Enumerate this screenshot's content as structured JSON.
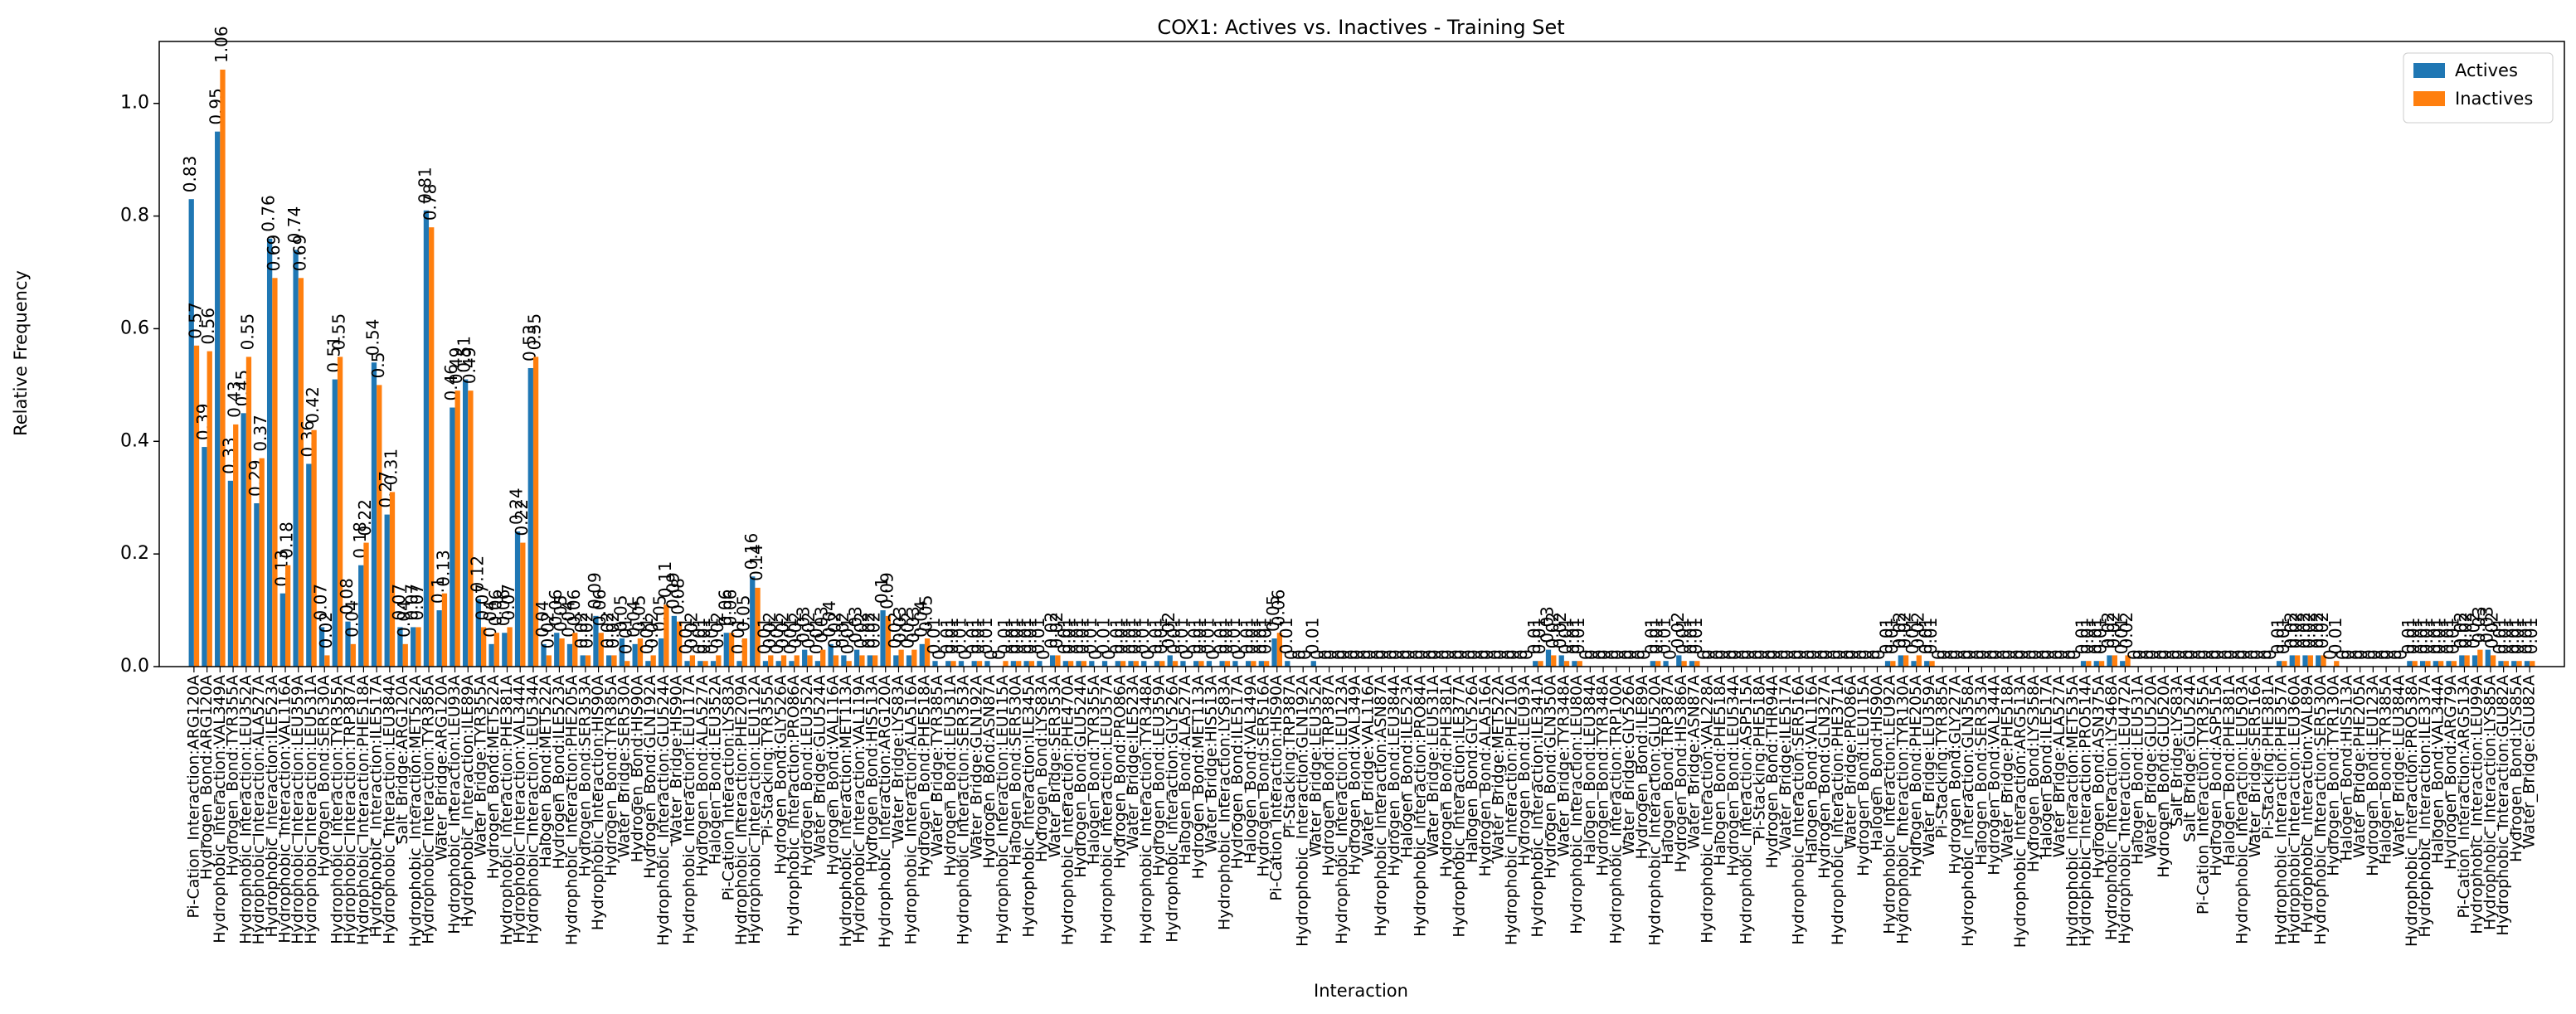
{
  "chart_data": {
    "type": "bar",
    "title": "COX1: Actives vs. Inactives - Training Set",
    "xlabel": "Interaction",
    "ylabel": "Relative Frequency",
    "legend": "upper right",
    "categories": [
      "Pi-Cation_Interaction:ARG120A",
      "Hydrogen_Bond:ARG120A",
      "Hydrophobic_Interaction:VAL349A",
      "Hydrogen_Bond:TYR355A",
      "Hydrophobic_Interaction:LEU352A",
      "Hydrophobic_Interaction:ALA527A",
      "Hydrophobic_Interaction:ILE523A",
      "Hydrophobic_Interaction:VAL116A",
      "Hydrophobic_Interaction:LEU359A",
      "Hydrophobic_Interaction:LEU531A",
      "Hydrogen_Bond:SER530A",
      "Hydrophobic_Interaction:TYR355A",
      "Hydrophobic_Interaction:TRP387A",
      "Hydrophobic_Interaction:PHE518A",
      "Hydrophobic_Interaction:ILE517A",
      "Hydrophobic_Interaction:LEU384A",
      "Salt_Bridge:ARG120A",
      "Hydrophobic_Interaction:MET522A",
      "Hydrophobic_Interaction:TYR385A",
      "Water_Bridge:ARG120A",
      "Hydrophobic_Interaction:LEU93A",
      "Hydrophobic_Interaction:ILE89A",
      "Water_Bridge:TYR355A",
      "Hydrogen_Bond:MET522A",
      "Hydrophobic_Interaction:PHE381A",
      "Hydrophobic_Interaction:VAL344A",
      "Hydrophobic_Interaction:LEU534A",
      "Halogen_Bond:MET522A",
      "Hydrogen_Bond:ILE523A",
      "Hydrophobic_Interaction:PHE205A",
      "Hydrogen_Bond:SER353A",
      "Hydrophobic_Interaction:HIS90A",
      "Hydrogen_Bond:TYR385A",
      "Water_Bridge:SER530A",
      "Hydrogen_Bond:HIS90A",
      "Hydrogen_Bond:GLN192A",
      "Hydrophobic_Interaction:GLU524A",
      "Water_Bridge:HIS90A",
      "Hydrophobic_Interaction:LEU117A",
      "Hydrogen_Bond:ALA527A",
      "Halogen_Bond:LEU352A",
      "Pi-Cation_Interaction:LYS83A",
      "Hydrophobic_Interaction:PHE209A",
      "Hydrophobic_Interaction:LEU112A",
      "Pi-Stacking:TYR355A",
      "Hydrogen_Bond:GLY526A",
      "Hydrophobic_Interaction:PRO86A",
      "Hydrogen_Bond:LEU352A",
      "Water_Bridge:GLU524A",
      "Hydrogen_Bond:VAL116A",
      "Hydrophobic_Interaction:MET113A",
      "Hydrophobic_Interaction:VAL119A",
      "Hydrogen_Bond:HIS513A",
      "Hydrophobic_Interaction:ARG120A",
      "Water_Bridge:LYS83A",
      "Hydrophobic_Interaction:ALA516A",
      "Hydrogen_Bond:PHE518A",
      "Water_Bridge:TYR385A",
      "Hydrogen_Bond:LEU531A",
      "Hydrophobic_Interaction:SER353A",
      "Water_Bridge:GLN192A",
      "Hydrogen_Bond:ASN87A",
      "Hydrophobic_Interaction:LEU115A",
      "Halogen_Bond:SER530A",
      "Hydrophobic_Interaction:ILE345A",
      "Hydrogen_Bond:LYS83A",
      "Water_Bridge:SER353A",
      "Hydrophobic_Interaction:PHE470A",
      "Hydrogen_Bond:GLU524A",
      "Halogen_Bond:TYR355A",
      "Hydrophobic_Interaction:LEU357A",
      "Hydrogen_Bond:PRO86A",
      "Water_Bridge:ILE523A",
      "Hydrophobic_Interaction:TYR348A",
      "Hydrogen_Bond:LEU359A",
      "Hydrophobic_Interaction:GLY526A",
      "Halogen_Bond:ALA527A",
      "Hydrogen_Bond:MET113A",
      "Water_Bridge:HIS513A",
      "Hydrophobic_Interaction:LYS83A",
      "Hydrogen_Bond:ILE517A",
      "Halogen_Bond:VAL349A",
      "Hydrogen_Bond:SER516A",
      "Pi-Cation_Interaction:HIS90A",
      "Pi-Stacking:TRP387A",
      "Hydrophobic_Interaction:GLN192A",
      "Water_Bridge:LEU352A",
      "Hydrogen_Bond:TRP387A",
      "Hydrophobic_Interaction:LEU123A",
      "Hydrogen_Bond:VAL349A",
      "Water_Bridge:VAL116A",
      "Hydrophobic_Interaction:ASN87A",
      "Hydrogen_Bond:LEU384A",
      "Halogen_Bond:ILE523A",
      "Hydrophobic_Interaction:PRO84A",
      "Water_Bridge:LEU531A",
      "Hydrogen_Bond:PHE381A",
      "Hydrophobic_Interaction:ILE377A",
      "Halogen_Bond:GLY526A",
      "Hydrogen_Bond:ALA516A",
      "Water_Bridge:MET522A",
      "Hydrophobic_Interaction:PHE210A",
      "Hydrogen_Bond:LEU93A",
      "Hydrophobic_Interaction:ILE341A",
      "Hydrogen_Bond:GLN350A",
      "Water_Bridge:TYR348A",
      "Hydrophobic_Interaction:LEU80A",
      "Halogen_Bond:LEU384A",
      "Hydrogen_Bond:TYR348A",
      "Hydrophobic_Interaction:TRP100A",
      "Water_Bridge:GLY526A",
      "Hydrogen_Bond:ILE89A",
      "Hydrophobic_Interaction:GLU520A",
      "Halogen_Bond:TRP387A",
      "Hydrogen_Bond:HIS386A",
      "Water_Bridge:ASN87A",
      "Hydrophobic_Interaction:VAL228A",
      "Halogen_Bond:PHE518A",
      "Hydrogen_Bond:LEU534A",
      "Hydrophobic_Interaction:ASP515A",
      "Pi-Stacking:PHE518A",
      "Hydrogen_Bond:THR94A",
      "Water_Bridge:ILE517A",
      "Hydrophobic_Interaction:SER516A",
      "Halogen_Bond:VAL116A",
      "Hydrogen_Bond:GLN327A",
      "Hydrophobic_Interaction:PHE371A",
      "Water_Bridge:PRO86A",
      "Hydrogen_Bond:LEU115A",
      "Halogen_Bond:HIS90A",
      "Hydrophobic_Interaction:LEU92A",
      "Hydrophobic_Interaction:TYR130A",
      "Hydrogen_Bond:PHE205A",
      "Water_Bridge:LEU359A",
      "Pi-Stacking:TYR385A",
      "Hydrogen_Bond:GLY227A",
      "Hydrophobic_Interaction:GLN358A",
      "Halogen_Bond:SER353A",
      "Hydrogen_Bond:VAL344A",
      "Water_Bridge:PHE518A",
      "Hydrophobic_Interaction:ARG513A",
      "Hydrogen_Bond:LYS358A",
      "Halogen_Bond:ILE517A",
      "Water_Bridge:ALA527A",
      "Hydrophobic_Interaction:MET535A",
      "Hydrophobic_Interaction:PRO514A",
      "Hydrogen_Bond:ASN375A",
      "Hydrophobic_Interaction:LYS468A",
      "Hydrophobic_Interaction:LEU472A",
      "Halogen_Bond:LEU531A",
      "Water_Bridge:GLU520A",
      "Hydrogen_Bond:GLU520A",
      "Salt_Bridge:LYS83A",
      "Salt_Bridge:GLU524A",
      "Pi-Cation_Interaction:TYR355A",
      "Hydrogen_Bond:ASP515A",
      "Halogen_Bond:PHE381A",
      "Hydrophobic_Interaction:LEU503A",
      "Water_Bridge:SER516A",
      "Pi-Stacking:PHE381A",
      "Hydrophobic_Interaction:PHE357A",
      "Hydrophobic_Interaction:LEU360A",
      "Hydrophobic_Interaction:VAL89A",
      "Hydrophobic_Interaction:SER530A",
      "Hydrogen_Bond:TYR130A",
      "Halogen_Bond:HIS513A",
      "Water_Bridge:PHE205A",
      "Hydrogen_Bond:LEU123A",
      "Halogen_Bond:TYR385A",
      "Water_Bridge:LEU384A",
      "Hydrophobic_Interaction:PRO538A",
      "Hydrophobic_Interaction:ILE337A",
      "Halogen_Bond:VAL344A",
      "Hydrogen_Bond:ARG79A",
      "Pi-Cation_Interaction:ARG513A",
      "Hydrophobic_Interaction:LEU99A",
      "Hydrophobic_Interaction:LYS85A",
      "Hydrophobic_Interaction:GLU82A",
      "Hydrogen_Bond:LYS85A",
      "Water_Bridge:GLU82A"
    ],
    "series": [
      {
        "name": "Actives",
        "color": "#1f77b4",
        "values": [
          0.83,
          0.39,
          0.95,
          0.33,
          0.45,
          0.29,
          0.76,
          0.13,
          0.74,
          0.36,
          0.07,
          0.51,
          0.08,
          0.18,
          0.54,
          0.27,
          0.07,
          0.07,
          0.81,
          0.1,
          0.46,
          0.51,
          0.12,
          0.04,
          0.06,
          0.24,
          0.53,
          0.04,
          0.06,
          0.04,
          0.02,
          0.09,
          0.02,
          0.05,
          0.04,
          0.01,
          0.05,
          0.09,
          0.01,
          0.01,
          0.01,
          0.06,
          0.01,
          0.16,
          0.01,
          0.01,
          0.01,
          0.03,
          0.01,
          0.04,
          0.02,
          0.03,
          0.02,
          0.1,
          0.02,
          0.02,
          0.04,
          0.01,
          0.01,
          0.01,
          0.01,
          0.01,
          0,
          0.01,
          0.01,
          0.01,
          0.02,
          0.01,
          0.01,
          0.01,
          0.01,
          0.01,
          0.01,
          0.01,
          0.01,
          0.02,
          0.01,
          0.01,
          0.01,
          0.01,
          0.01,
          0.01,
          0.01,
          0.05,
          0.01,
          0,
          0.01,
          0,
          0,
          0,
          0,
          0,
          0,
          0,
          0,
          0,
          0,
          0,
          0,
          0,
          0,
          0,
          0,
          0.01,
          0.03,
          0.02,
          0.01,
          0,
          0,
          0,
          0,
          0,
          0.01,
          0.01,
          0.02,
          0.01,
          0,
          0,
          0,
          0,
          0,
          0,
          0,
          0,
          0,
          0,
          0,
          0,
          0,
          0,
          0.01,
          0.02,
          0.01,
          0.01,
          0,
          0,
          0,
          0,
          0,
          0,
          0,
          0,
          0,
          0,
          0,
          0.01,
          0.01,
          0.02,
          0.01,
          0,
          0,
          0,
          0,
          0,
          0,
          0,
          0,
          0,
          0,
          0,
          0.01,
          0.02,
          0.02,
          0.02,
          0,
          0,
          0,
          0,
          0,
          0,
          0.01,
          0.01,
          0.01,
          0.01,
          0.02,
          0.02,
          0.03,
          0.01,
          0.01,
          0.01
        ]
      },
      {
        "name": "Inactives",
        "color": "#ff7f0e",
        "values": [
          0.57,
          0.56,
          1.06,
          0.43,
          0.55,
          0.37,
          0.69,
          0.18,
          0.69,
          0.42,
          0.02,
          0.55,
          0.04,
          0.22,
          0.5,
          0.31,
          0.04,
          0.07,
          0.78,
          0.13,
          0.49,
          0.49,
          0.07,
          0.06,
          0.07,
          0.22,
          0.55,
          0.02,
          0.05,
          0.06,
          0.02,
          0.06,
          0.02,
          0.01,
          0.05,
          0.02,
          0.11,
          0.08,
          0.02,
          0.01,
          0.02,
          0.06,
          0.05,
          0.14,
          0.02,
          0.02,
          0.02,
          0.02,
          0.03,
          0.02,
          0.01,
          0.02,
          0.02,
          0.09,
          0.03,
          0.03,
          0.05,
          0,
          0.01,
          0,
          0.01,
          0,
          0.01,
          0.01,
          0.01,
          0,
          0.02,
          0.01,
          0.01,
          0,
          0,
          0.01,
          0.01,
          0,
          0.01,
          0.01,
          0,
          0.01,
          0,
          0.01,
          0,
          0.01,
          0.01,
          0.06,
          0,
          0,
          0,
          0,
          0,
          0,
          0,
          0,
          0,
          0,
          0,
          0,
          0,
          0,
          0,
          0,
          0,
          0,
          0,
          0.01,
          0.02,
          0.01,
          0.01,
          0,
          0,
          0,
          0,
          0,
          0.01,
          0,
          0.01,
          0.01,
          0,
          0,
          0,
          0,
          0,
          0,
          0,
          0,
          0,
          0,
          0,
          0,
          0,
          0,
          0.01,
          0.02,
          0.02,
          0.01,
          0,
          0,
          0,
          0,
          0,
          0,
          0,
          0,
          0,
          0,
          0,
          0.01,
          0.01,
          0.02,
          0.02,
          0,
          0,
          0,
          0,
          0,
          0,
          0,
          0,
          0,
          0,
          0,
          0.01,
          0.02,
          0.02,
          0.02,
          0.01,
          0,
          0,
          0,
          0,
          0,
          0.01,
          0.01,
          0.01,
          0.01,
          0.02,
          0.03,
          0.02,
          0.01,
          0.01,
          0.01
        ]
      }
    ],
    "ylim": [
      0,
      1.11
    ],
    "yticks": [
      {
        "value": 0,
        "label": "0.0"
      },
      {
        "value": 0.2,
        "label": "0.2"
      },
      {
        "value": 0.4,
        "label": "0.4"
      },
      {
        "value": 0.6,
        "label": "0.6"
      },
      {
        "value": 0.8,
        "label": "0.8"
      },
      {
        "value": 1,
        "label": "1.0"
      }
    ]
  }
}
